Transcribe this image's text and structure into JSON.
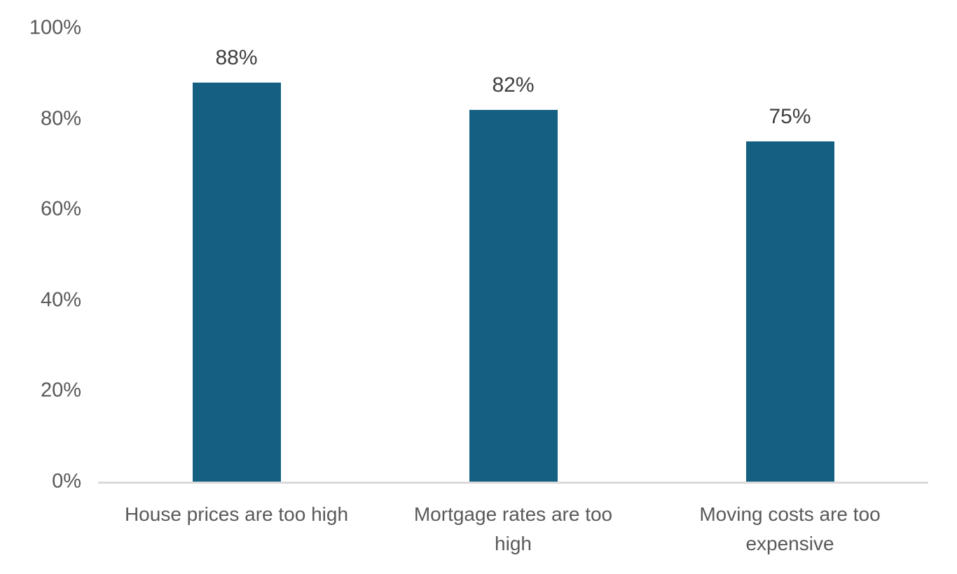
{
  "chart_data": {
    "type": "bar",
    "title": "",
    "xlabel": "",
    "ylabel": "",
    "grid": false,
    "legend": false,
    "categories": [
      "House prices are too high",
      "Mortgage rates are too high",
      "Moving costs are too expensive"
    ],
    "category_display_lines": [
      [
        "House prices are too high"
      ],
      [
        "Mortgage rates are too",
        "high"
      ],
      [
        "Moving costs are too",
        "expensive"
      ]
    ],
    "values": [
      88,
      82,
      75
    ],
    "data_labels": [
      "88%",
      "82%",
      "75%"
    ],
    "y_axis": {
      "tick_labels": [
        "0%",
        "20%",
        "40%",
        "60%",
        "80%",
        "100%"
      ],
      "tick_values": [
        0,
        20,
        40,
        60,
        80,
        100
      ],
      "ylim": [
        0,
        100
      ]
    },
    "colors": {
      "bar": "#156082",
      "data_label_text": "#404040",
      "axis_text": "#595959",
      "category_text": "#595959",
      "axis_line": "#d9d9d9",
      "background": "#ffffff"
    }
  }
}
